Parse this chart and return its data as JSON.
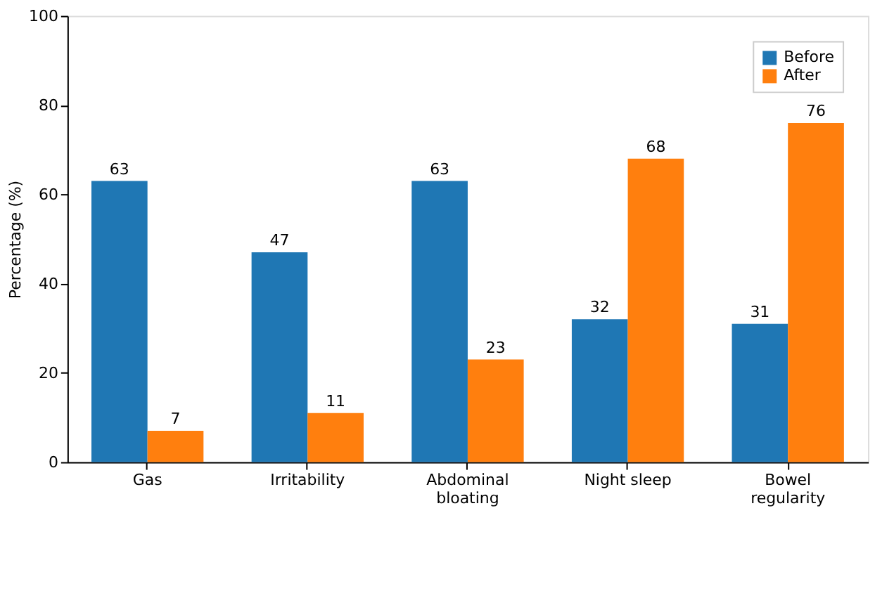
{
  "chart_data": {
    "type": "bar",
    "categories": [
      "Gas",
      "Irritability",
      "Abdominal\nbloating",
      "Night sleep",
      "Bowel\nregularity"
    ],
    "series": [
      {
        "name": "Before",
        "color": "#1f77b4",
        "values": [
          63,
          47,
          63,
          32,
          31
        ]
      },
      {
        "name": "After",
        "color": "#ff7f0e",
        "values": [
          7,
          11,
          23,
          68,
          76
        ]
      }
    ],
    "ylabel": "Percentage (%)",
    "ylim": [
      0,
      100
    ],
    "yticks": [
      0,
      20,
      40,
      60,
      80,
      100
    ],
    "data_labels": true,
    "grid": false,
    "legend": "top right"
  }
}
